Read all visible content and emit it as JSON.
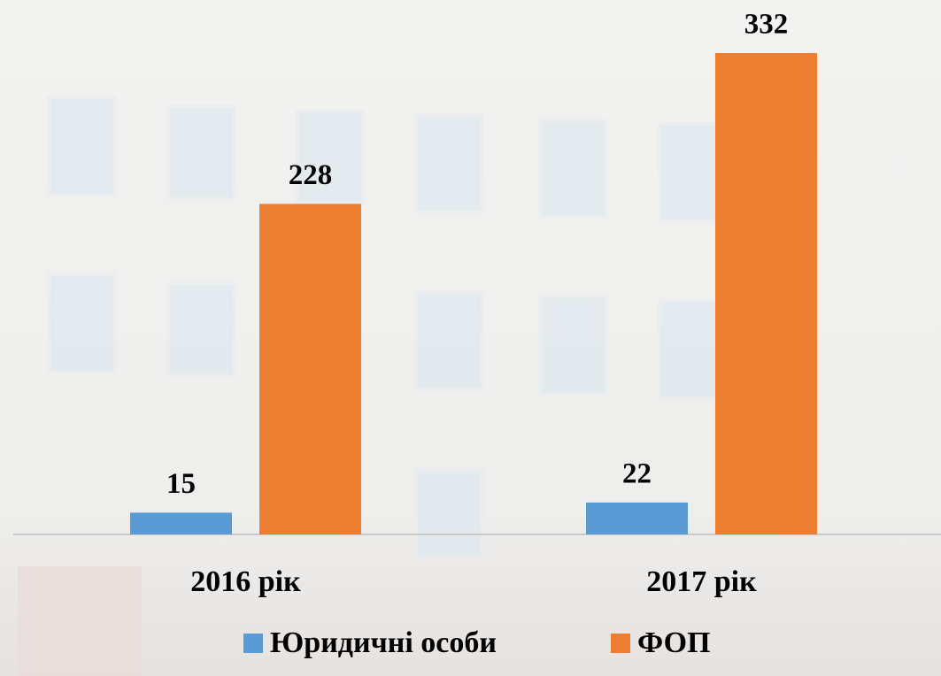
{
  "chart_data": {
    "type": "bar",
    "categories": [
      "2016 рік",
      "2017 рік"
    ],
    "series": [
      {
        "name": "Юридичні особи",
        "color": "#5b9bd5",
        "values": [
          15,
          22
        ]
      },
      {
        "name": "ФОП",
        "color": "#ed7d31",
        "values": [
          228,
          332
        ]
      }
    ],
    "legend": "bottom"
  }
}
